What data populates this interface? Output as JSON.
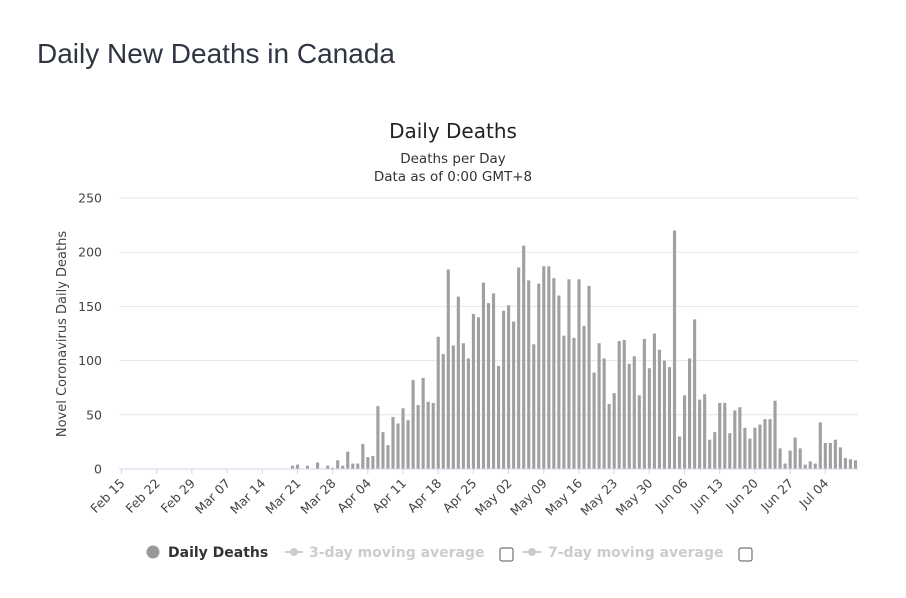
{
  "page_title": "Daily New Deaths in Canada",
  "chart_data": {
    "type": "bar",
    "title": "Daily Deaths",
    "subtitle": [
      "Deaths per Day",
      "Data as of 0:00 GMT+8"
    ],
    "ylabel": "Novel Coronavirus Daily Deaths",
    "xlabel": "",
    "ylim": [
      0,
      250
    ],
    "yticks": [
      0,
      50,
      100,
      150,
      200,
      250
    ],
    "grid": true,
    "legend_position": "bottom",
    "bar_color": "#a0a0a0",
    "start_date": "Feb 15",
    "xtick_labels": [
      "Feb 15",
      "Feb 22",
      "Feb 29",
      "Mar 07",
      "Mar 14",
      "Mar 21",
      "Mar 28",
      "Apr 04",
      "Apr 11",
      "Apr 18",
      "Apr 25",
      "May 02",
      "May 09",
      "May 16",
      "May 23",
      "May 30",
      "Jun 06",
      "Jun 13",
      "Jun 20",
      "Jun 27",
      "Jul 04"
    ],
    "series": [
      {
        "name": "Daily Deaths",
        "values": [
          0,
          0,
          0,
          0,
          0,
          0,
          0,
          0,
          0,
          0,
          0,
          0,
          0,
          0,
          0,
          0,
          0,
          0,
          0,
          0,
          0,
          0,
          0,
          0,
          0,
          0,
          0,
          0,
          0,
          0,
          0,
          0,
          0,
          0,
          3,
          4,
          0,
          3,
          0,
          6,
          0,
          3,
          1,
          8,
          3,
          16,
          5,
          5,
          23,
          11,
          12,
          58,
          34,
          22,
          48,
          42,
          56,
          45,
          82,
          59,
          84,
          62,
          61,
          122,
          106,
          184,
          114,
          159,
          116,
          102,
          143,
          140,
          172,
          153,
          162,
          95,
          146,
          151,
          136,
          186,
          206,
          174,
          115,
          171,
          187,
          187,
          176,
          160,
          123,
          175,
          121,
          175,
          132,
          169,
          89,
          116,
          102,
          60,
          70,
          118,
          119,
          97,
          104,
          68,
          120,
          93,
          125,
          110,
          100,
          94,
          220,
          30,
          68,
          102,
          138,
          64,
          69,
          27,
          34,
          61,
          61,
          33,
          54,
          57,
          38,
          28,
          38,
          41,
          46,
          46,
          63,
          19,
          5,
          17,
          29,
          19,
          4,
          7,
          5,
          43,
          24,
          24,
          27,
          20,
          10,
          9,
          8
        ]
      }
    ],
    "legend": [
      {
        "label": "Daily Deaths",
        "active": true,
        "color": "#999999"
      },
      {
        "label": "3-day moving average",
        "active": false,
        "color": "#cccccc"
      },
      {
        "label": "7-day moving average",
        "active": false,
        "color": "#cccccc"
      }
    ]
  }
}
